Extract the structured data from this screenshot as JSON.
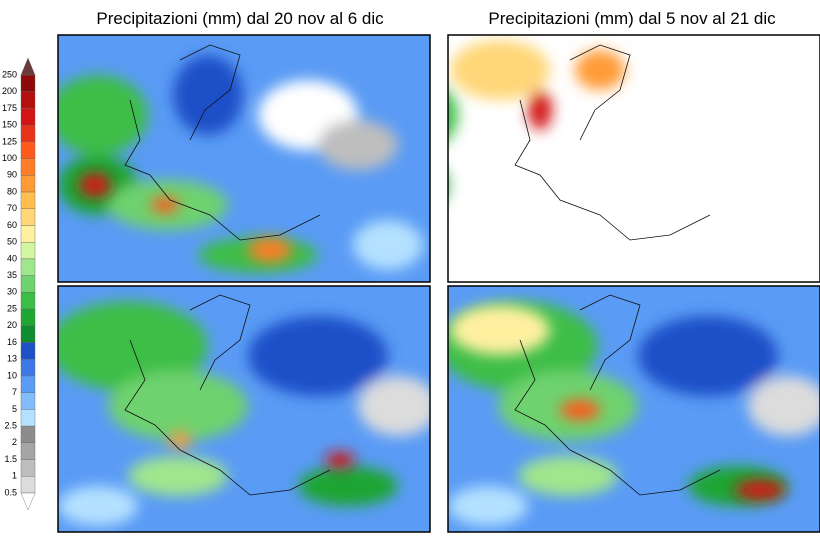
{
  "titles": [
    "Precipitazioni (mm) dal 20 nov al 6 dic",
    "Precipitazioni (mm) dal 5 nov al 21 dic"
  ],
  "legend": {
    "labels": [
      250,
      200,
      175,
      150,
      125,
      100,
      90,
      80,
      70,
      60,
      50,
      40,
      35,
      30,
      25,
      20,
      16,
      13,
      10,
      7,
      5,
      2.5,
      2,
      1.5,
      1,
      0.5
    ],
    "top_color": "#6b3a3a",
    "bottom_color": "#ffffff",
    "colors": [
      "#8c0a0a",
      "#b40f0f",
      "#d21414",
      "#e83219",
      "#ff5a1e",
      "#ff7d28",
      "#ff9b37",
      "#ffbe50",
      "#ffd778",
      "#fff0a0",
      "#d2f5a0",
      "#a0e68c",
      "#6ed26e",
      "#3cbe46",
      "#1ea532",
      "#0f8c2d",
      "#1e50c8",
      "#3c78e6",
      "#5a9bf5",
      "#82bcfa",
      "#b4e1ff",
      "#8c8c8c",
      "#a5a5a5",
      "#bebebe",
      "#dcdcdc"
    ]
  }
}
